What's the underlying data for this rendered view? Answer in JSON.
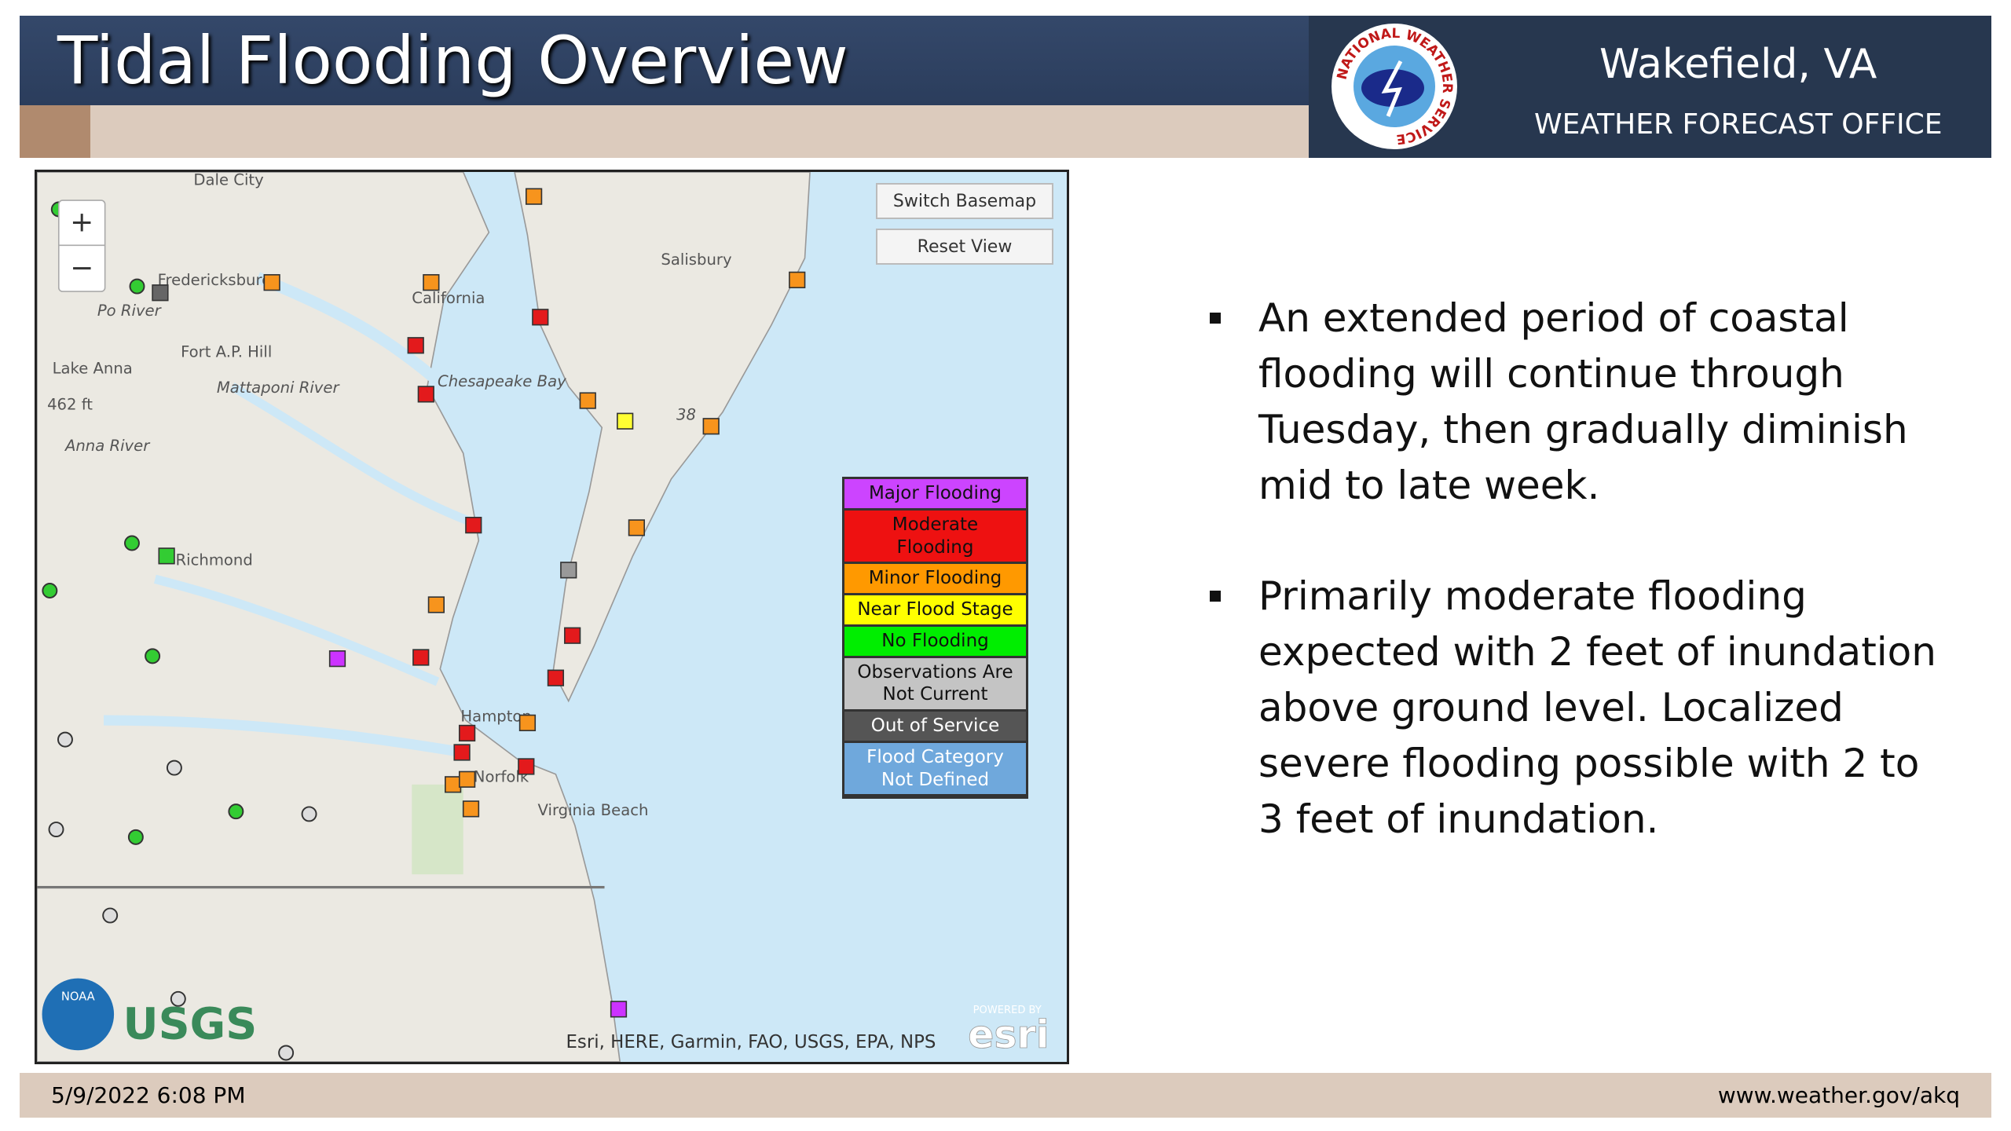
{
  "header": {
    "title": "Tidal Flooding Overview",
    "office_name": "Wakefield, VA",
    "office_subtitle": "WEATHER FORECAST OFFICE",
    "logo_text": "NATIONAL WEATHER SERVICE"
  },
  "map": {
    "labels": [
      "Dale City",
      "Fredericksburg",
      "California",
      "Salisbury",
      "Fort A.P. Hill",
      "Chesapeake Bay",
      "Richmond",
      "Hampton",
      "Norfolk",
      "Virginia Beach",
      "Lake Anna",
      "462 ft",
      "Po River",
      "Mattaponi River",
      "Anna River",
      "38"
    ],
    "zoom_in": "+",
    "zoom_out": "−",
    "buttons": [
      "Switch Basemap",
      "Reset View"
    ],
    "legend": [
      "Major Flooding",
      "Moderate Flooding",
      "Minor Flooding",
      "Near Flood Stage",
      "No Flooding",
      "Observations Are Not Current",
      "Out of Service",
      "Flood Category Not Defined"
    ],
    "attribution": "Esri, HERE, Garmin, FAO, USGS, EPA, NPS",
    "logos": [
      "NOAA",
      "USGS",
      "POWERED BY",
      "esri"
    ]
  },
  "bullets": [
    "An extended period of coastal flooding will continue through Tuesday, then gradually diminish mid to late week.",
    "Primarily moderate flooding expected with 2 feet of inundation above ground level. Localized severe flooding possible with 2 to 3 feet of inundation."
  ],
  "footer": {
    "date": "5/9/2022 6:08 PM",
    "url": "www.weather.gov/akq"
  }
}
